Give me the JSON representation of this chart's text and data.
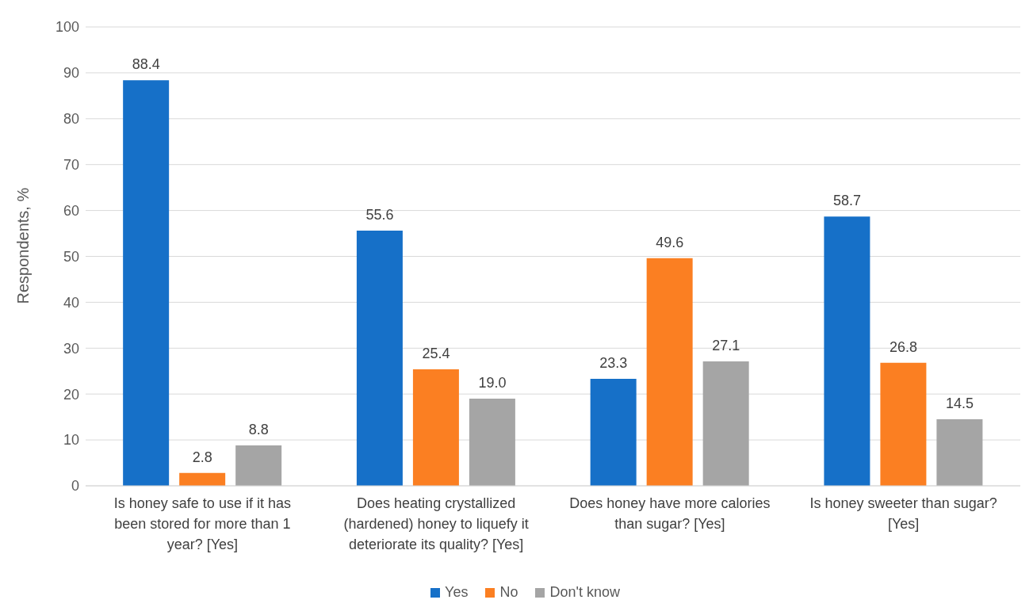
{
  "chart_data": {
    "type": "bar",
    "ylabel": "Respondents, %",
    "categories": [
      "Is honey safe to use if it has been stored for more than 1 year? [Yes]",
      "Does heating crystallized (hardened) honey to liquefy it deteriorate its quality? [Yes]",
      "Does honey have more calories than sugar? [Yes]",
      "Is honey sweeter than sugar? [Yes]"
    ],
    "series": [
      {
        "name": "Yes",
        "color": "#1670c8",
        "values": [
          88.4,
          55.6,
          23.3,
          58.7
        ],
        "value_labels": [
          "88.4",
          "55.6",
          "23.3",
          "58.7"
        ]
      },
      {
        "name": "No",
        "color": "#fb7f22",
        "values": [
          2.8,
          25.4,
          49.6,
          26.8
        ],
        "value_labels": [
          "2.8",
          "25.4",
          "49.6",
          "26.8"
        ]
      },
      {
        "name": "Don't know",
        "color": "#a5a5a5",
        "values": [
          8.8,
          19.0,
          27.1,
          14.5
        ],
        "value_labels": [
          "8.8",
          "19.0",
          "27.1",
          "14.5"
        ]
      }
    ],
    "ylim": [
      0,
      100
    ],
    "yticks": [
      0,
      10,
      20,
      30,
      40,
      50,
      60,
      70,
      80,
      90,
      100
    ],
    "grid": "y",
    "legend": "bottom"
  }
}
